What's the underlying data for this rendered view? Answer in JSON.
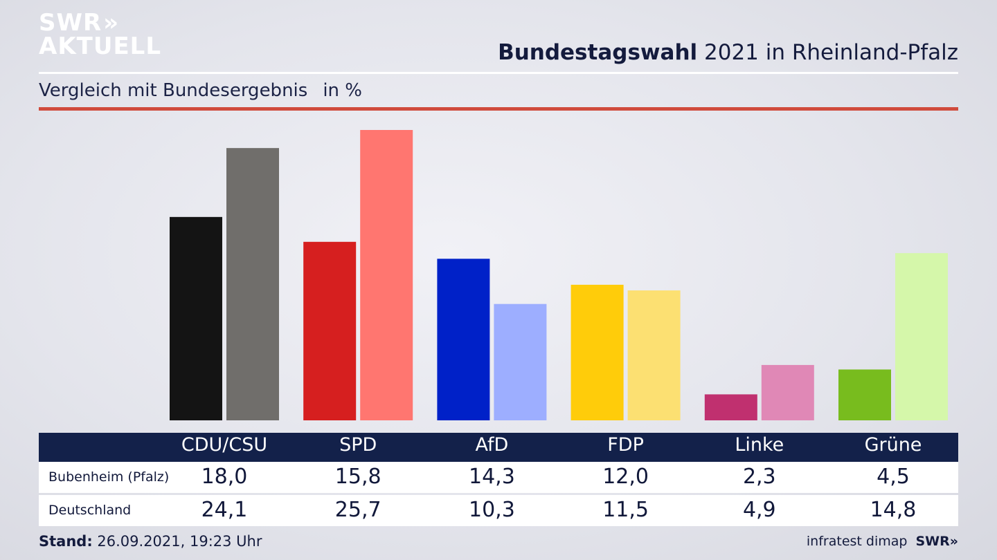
{
  "logo": {
    "line1": "SWR",
    "line2": "AKTUELL",
    "chevrons": "»"
  },
  "header": {
    "title_bold": "Bundestagswahl",
    "title_rest": " 2021 in Rheinland-Pfalz",
    "subtitle": "Vergleich mit Bundesergebnis",
    "unit": "in %"
  },
  "footer": {
    "stand_label": "Stand:",
    "stand_value": " 26.09.2021, 19:23 Uhr",
    "source": "infratest dimap",
    "brand": "SWR»"
  },
  "chart_data": {
    "type": "bar",
    "categories": [
      "CDU/CSU",
      "SPD",
      "AfD",
      "FDP",
      "Linke",
      "Grüne"
    ],
    "series": [
      {
        "name": "Bubenheim (Pfalz)",
        "values": [
          18.0,
          15.8,
          14.3,
          12.0,
          2.3,
          4.5
        ],
        "labels": [
          "18,0",
          "15,8",
          "14,3",
          "12,0",
          "2,3",
          "4,5"
        ],
        "colors": [
          "#141414",
          "#d61f1f",
          "#0021c8",
          "#ffcc0a",
          "#c0306f",
          "#78bc1e"
        ]
      },
      {
        "name": "Deutschland",
        "values": [
          24.1,
          25.7,
          10.3,
          11.5,
          4.9,
          14.8
        ],
        "labels": [
          "24,1",
          "25,7",
          "10,3",
          "11,5",
          "4,9",
          "14,8"
        ],
        "colors": [
          "#706e6b",
          "#ff7670",
          "#9daeff",
          "#fce072",
          "#e088b6",
          "#d5f7aa"
        ]
      }
    ],
    "ylim": [
      0,
      25.7
    ],
    "legend": "table-below",
    "grid": false
  }
}
